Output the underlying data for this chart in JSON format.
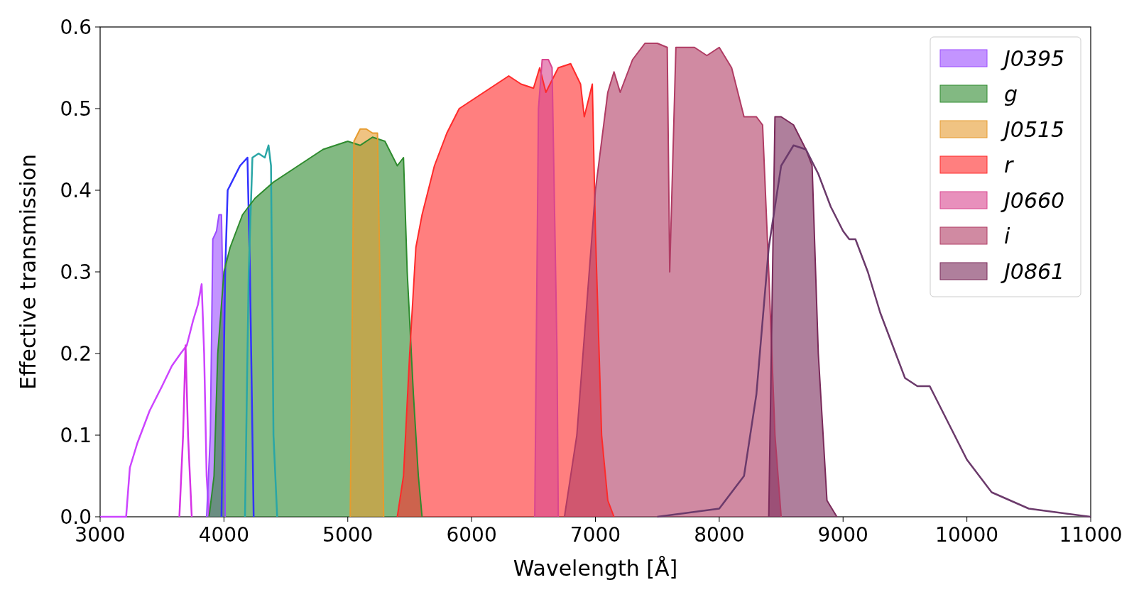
{
  "chart_data": {
    "type": "area",
    "xlabel": "Wavelength [Å]",
    "ylabel": "Effective transmission",
    "xlim": [
      3000,
      11000
    ],
    "ylim": [
      0,
      0.6
    ],
    "xticks": [
      3000,
      4000,
      5000,
      6000,
      7000,
      8000,
      9000,
      10000,
      11000
    ],
    "yticks": [
      {
        "value": 0,
        "label": "0.0"
      },
      0.1,
      0.2,
      0.3,
      0.4,
      0.5,
      0.6
    ],
    "legend": "top right",
    "grid": false,
    "series": [
      {
        "type": "line",
        "color": "#cc44ff",
        "x": [
          3000,
          3210,
          3240,
          3300,
          3400,
          3500,
          3580,
          3650,
          3700,
          3750,
          3790,
          3820,
          3840,
          3860,
          3880
        ],
        "values": [
          0,
          0,
          0.06,
          0.09,
          0.13,
          0.16,
          0.185,
          0.2,
          0.21,
          0.24,
          0.26,
          0.285,
          0.2,
          0.05,
          0
        ]
      },
      {
        "type": "line",
        "color": "#d633e6",
        "x": [
          3640,
          3670,
          3690,
          3710,
          3740
        ],
        "values": [
          0,
          0.1,
          0.21,
          0.1,
          0
        ]
      },
      {
        "name": "J0395",
        "color": "#9b4dff",
        "x": [
          3860,
          3890,
          3910,
          3940,
          3960,
          3980,
          4000,
          4010
        ],
        "values": [
          0,
          0.1,
          0.34,
          0.35,
          0.37,
          0.37,
          0.2,
          0
        ]
      },
      {
        "type": "line",
        "color": "#3333ff",
        "x": [
          3980,
          4010,
          4030,
          4080,
          4130,
          4190,
          4210,
          4240
        ],
        "values": [
          0,
          0.3,
          0.4,
          0.415,
          0.43,
          0.44,
          0.3,
          0
        ]
      },
      {
        "type": "line",
        "color": "#2aa6a6",
        "x": [
          4170,
          4200,
          4230,
          4280,
          4330,
          4360,
          4380,
          4400,
          4430
        ],
        "values": [
          0,
          0.3,
          0.44,
          0.445,
          0.44,
          0.455,
          0.43,
          0.1,
          0
        ]
      },
      {
        "name": "g",
        "color": "#2e8b2e",
        "x": [
          3880,
          3920,
          3950,
          4000,
          4050,
          4150,
          4250,
          4400,
          4600,
          4800,
          5000,
          5100,
          5200,
          5300,
          5400,
          5450,
          5480,
          5530,
          5570,
          5600
        ],
        "values": [
          0,
          0.05,
          0.2,
          0.3,
          0.33,
          0.37,
          0.39,
          0.41,
          0.43,
          0.45,
          0.46,
          0.455,
          0.465,
          0.46,
          0.43,
          0.44,
          0.3,
          0.15,
          0.05,
          0
        ]
      },
      {
        "name": "J0515",
        "color": "#e69b2e",
        "x": [
          5020,
          5050,
          5100,
          5150,
          5200,
          5240,
          5270,
          5290
        ],
        "values": [
          0,
          0.46,
          0.475,
          0.475,
          0.47,
          0.47,
          0.2,
          0
        ]
      },
      {
        "name": "r",
        "color": "#ff2a2a",
        "x": [
          5400,
          5450,
          5500,
          5550,
          5600,
          5700,
          5800,
          5900,
          6000,
          6200,
          6300,
          6400,
          6500,
          6550,
          6600,
          6700,
          6800,
          6880,
          6910,
          6975,
          7000,
          7050,
          7100,
          7150
        ],
        "values": [
          0,
          0.05,
          0.2,
          0.33,
          0.37,
          0.43,
          0.47,
          0.5,
          0.51,
          0.53,
          0.54,
          0.53,
          0.525,
          0.55,
          0.52,
          0.55,
          0.555,
          0.53,
          0.49,
          0.53,
          0.35,
          0.1,
          0.02,
          0
        ]
      },
      {
        "name": "J0660",
        "color": "#d9468f",
        "x": [
          6510,
          6540,
          6570,
          6620,
          6650,
          6690,
          6700
        ],
        "values": [
          0,
          0.5,
          0.56,
          0.56,
          0.55,
          0.2,
          0
        ]
      },
      {
        "name": "i",
        "color": "#b03c64",
        "x": [
          6750,
          6850,
          6950,
          7000,
          7100,
          7150,
          7200,
          7300,
          7400,
          7500,
          7580,
          7600,
          7650,
          7800,
          7900,
          8000,
          8100,
          8200,
          8300,
          8350,
          8400,
          8450,
          8500
        ],
        "values": [
          0,
          0.1,
          0.3,
          0.4,
          0.52,
          0.545,
          0.52,
          0.56,
          0.58,
          0.58,
          0.575,
          0.3,
          0.575,
          0.575,
          0.565,
          0.575,
          0.55,
          0.49,
          0.49,
          0.48,
          0.3,
          0.1,
          0
        ]
      },
      {
        "name": "J0861",
        "color": "#7a2a5a",
        "x": [
          8400,
          8450,
          8500,
          8600,
          8700,
          8750,
          8800,
          8870,
          8950
        ],
        "values": [
          0,
          0.49,
          0.49,
          0.48,
          0.45,
          0.43,
          0.2,
          0.02,
          0
        ]
      },
      {
        "type": "line",
        "color": "#6b3a6b",
        "x": [
          7500,
          8000,
          8200,
          8300,
          8400,
          8500,
          8600,
          8700,
          8800,
          8900,
          9000,
          9050,
          9100,
          9200,
          9300,
          9400,
          9500,
          9600,
          9700,
          9800,
          10000,
          10200,
          10500,
          11000
        ],
        "values": [
          0,
          0.01,
          0.05,
          0.15,
          0.33,
          0.43,
          0.455,
          0.45,
          0.42,
          0.38,
          0.35,
          0.34,
          0.34,
          0.3,
          0.25,
          0.21,
          0.17,
          0.16,
          0.16,
          0.13,
          0.07,
          0.03,
          0.01,
          0
        ]
      }
    ]
  }
}
